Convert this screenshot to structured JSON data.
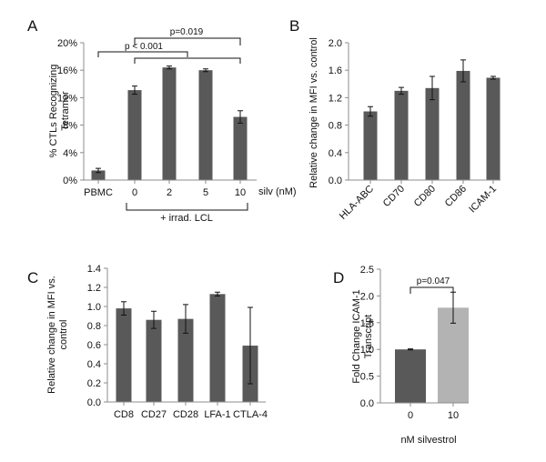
{
  "colors": {
    "bar_dark": "#595959",
    "bar_light": "#b3b3b3",
    "axis": "#8c8c8c",
    "text": "#111111"
  },
  "chart_data": [
    {
      "panel": "A",
      "type": "bar",
      "ylabel": "% CTLs Recognizing Tetramer",
      "ylim": [
        0,
        20
      ],
      "yticks": [
        "0%",
        "4%",
        "8%",
        "12%",
        "16%",
        "20%"
      ],
      "categories": [
        "PBMC",
        "0",
        "2",
        "5",
        "10"
      ],
      "values": [
        1.4,
        13.1,
        16.4,
        16.0,
        9.2
      ],
      "errors": [
        0.3,
        0.6,
        0.2,
        0.2,
        0.9
      ],
      "x_unit": "silv (nM)",
      "group_label": "+ irrad. LCL",
      "annotations": [
        "p < 0.001",
        "p=0.019"
      ]
    },
    {
      "panel": "B",
      "type": "bar",
      "ylabel": "Relative change in MFI vs. control",
      "ylim": [
        0,
        2.0
      ],
      "yticks": [
        "0.0",
        "0.4",
        "0.8",
        "1.2",
        "1.6",
        "2.0"
      ],
      "categories": [
        "HLA-ABC",
        "CD70",
        "CD80",
        "CD86",
        "ICAM-1"
      ],
      "values": [
        1.0,
        1.3,
        1.34,
        1.59,
        1.49
      ],
      "errors": [
        0.07,
        0.05,
        0.17,
        0.16,
        0.02
      ]
    },
    {
      "panel": "C",
      "type": "bar",
      "ylabel": "Relative change in MFI vs. control",
      "ylim": [
        0,
        1.4
      ],
      "yticks": [
        "0.0",
        "0.2",
        "0.4",
        "0.6",
        "0.8",
        "1.0",
        "1.2",
        "1.4"
      ],
      "categories": [
        "CD8",
        "CD27",
        "CD28",
        "LFA-1",
        "CTLA-4"
      ],
      "values": [
        0.98,
        0.86,
        0.87,
        1.13,
        0.59
      ],
      "errors": [
        0.07,
        0.09,
        0.15,
        0.02,
        0.4
      ]
    },
    {
      "panel": "D",
      "type": "bar",
      "ylabel": "Fold Change ICAM-1 Transcript",
      "xlabel": "nM silvestrol",
      "ylim": [
        0,
        2.5
      ],
      "yticks": [
        "0.0",
        "0.5",
        "1.0",
        "1.5",
        "2.0",
        "2.5"
      ],
      "categories": [
        "0",
        "10"
      ],
      "values": [
        1.0,
        1.78
      ],
      "errors": [
        0.01,
        0.29
      ],
      "annotations": [
        "p=0.047"
      ]
    }
  ]
}
